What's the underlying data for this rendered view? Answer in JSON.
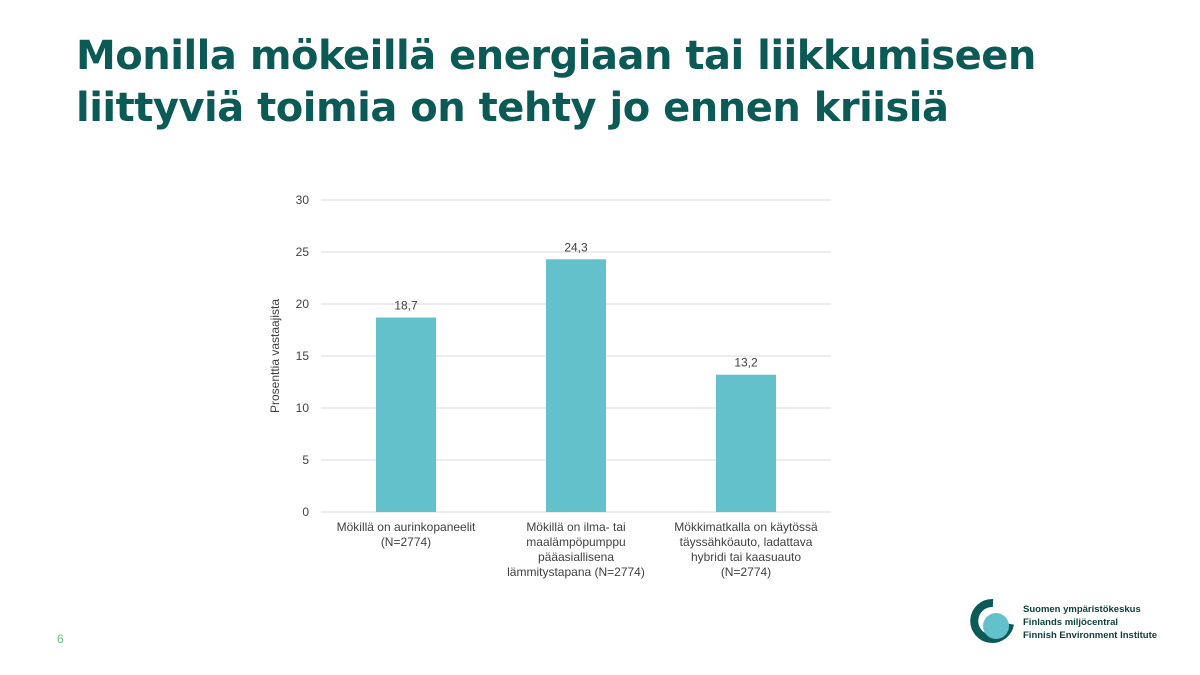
{
  "title": [
    "Monilla mökeillä energiaan tai liikkumiseen",
    "liittyviä toimia on tehty jo ennen kriisiä"
  ],
  "page_number": "6",
  "logo": {
    "lines": [
      "Suomen ympäristökeskus",
      "Finlands miljöcentral",
      "Finnish Environment Institute"
    ],
    "icon": "syke-logo-icon"
  },
  "colors": {
    "title": "#0b5a55",
    "bar": "#63c1cb",
    "page_number": "#6abf7a"
  },
  "chart_data": {
    "type": "bar",
    "categories": [
      [
        "Mökillä on aurinkopaneelit",
        "(N=2774)"
      ],
      [
        "Mökillä on ilma- tai",
        "maalämpöpumppu",
        "pääasiallisena",
        "lämmitystapana (N=2774)"
      ],
      [
        "Mökkimatkalla on käytössä",
        "täyssähköauto, ladattava",
        "hybridi tai kaasuauto",
        "(N=2774)"
      ]
    ],
    "values": [
      18.7,
      24.3,
      13.2
    ],
    "data_labels": [
      "18,7",
      "24,3",
      "13,2"
    ],
    "ylabel": "Prosenttia vastaajista",
    "ylim": [
      0,
      30
    ],
    "yticks": [
      0,
      5,
      10,
      15,
      20,
      25,
      30
    ],
    "grid": true,
    "legend": "none"
  }
}
